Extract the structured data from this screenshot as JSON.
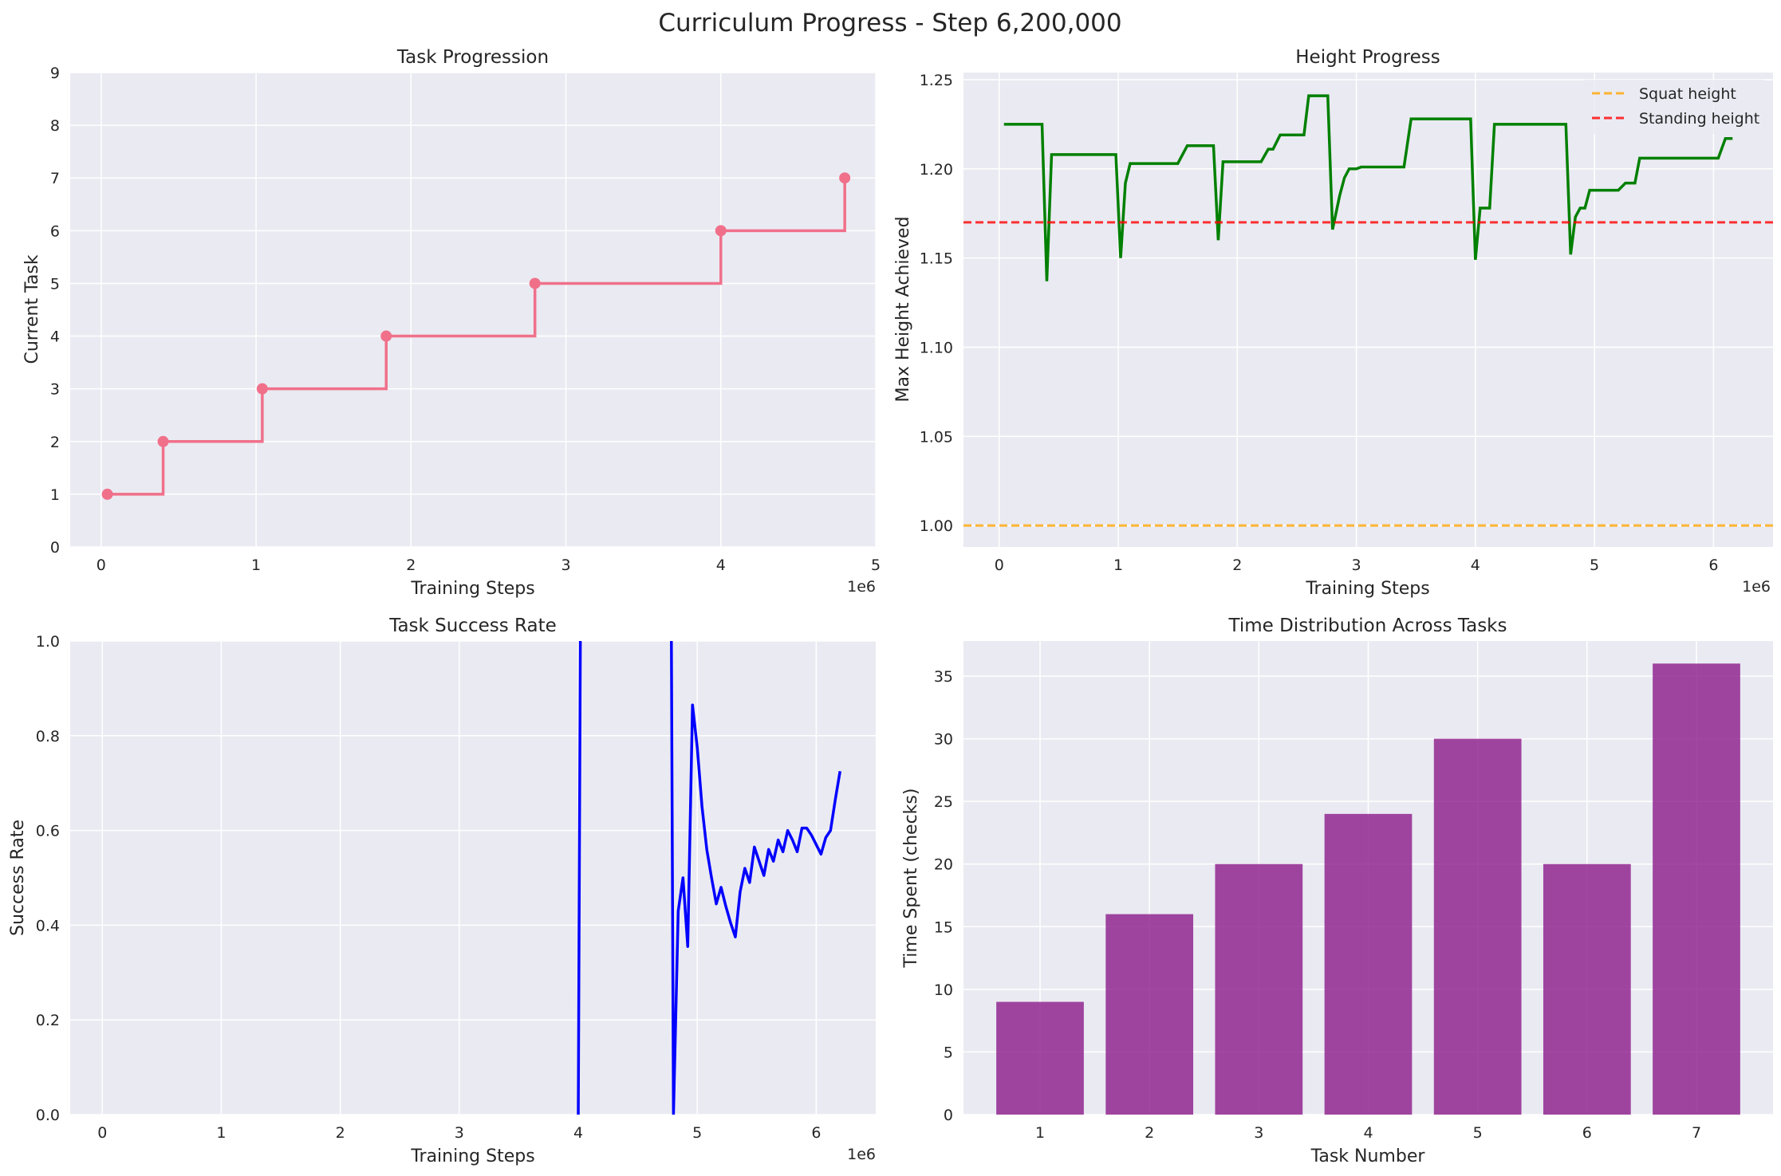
{
  "suptitle": "Curriculum Progress - Step 6,200,000",
  "chart_data": [
    {
      "id": "task",
      "type": "line",
      "title": "Task Progression",
      "xlabel": "Training Steps",
      "ylabel": "Current Task",
      "x_offset_label": "1e6",
      "xlim": [
        -0.2,
        5.0
      ],
      "ylim": [
        0,
        9
      ],
      "xticks": [
        0,
        1,
        2,
        3,
        4,
        5
      ],
      "yticks": [
        0,
        1,
        2,
        3,
        4,
        5,
        6,
        7,
        8,
        9
      ],
      "grid": true,
      "color": "#f0708a",
      "step": true,
      "series": [
        {
          "x": [
            0.04,
            0.4,
            1.04,
            1.84,
            2.8,
            4.0,
            4.8
          ],
          "y": [
            1,
            2,
            3,
            4,
            5,
            6,
            7
          ]
        }
      ]
    },
    {
      "id": "height",
      "type": "line",
      "title": "Height Progress",
      "xlabel": "Training Steps",
      "ylabel": "Max Height Achieved",
      "x_offset_label": "1e6",
      "xlim": [
        -0.3,
        6.5
      ],
      "ylim": [
        0.988,
        1.254
      ],
      "xticks": [
        0,
        1,
        2,
        3,
        4,
        5,
        6
      ],
      "yticks": [
        1.0,
        1.05,
        1.1,
        1.15,
        1.2,
        1.25
      ],
      "ytick_decimals": 2,
      "grid": true,
      "legend_position": "top-right",
      "color": "#008000",
      "series": [
        {
          "x": [
            0.04,
            0.2,
            0.36,
            0.4,
            0.44,
            0.6,
            0.8,
            0.98,
            1.02,
            1.06,
            1.1,
            1.3,
            1.5,
            1.58,
            1.62,
            1.8,
            1.84,
            1.88,
            2.0,
            2.2,
            2.26,
            2.3,
            2.36,
            2.4,
            2.56,
            2.6,
            2.76,
            2.8,
            2.86,
            2.9,
            2.94,
            3.0,
            3.04,
            3.1,
            3.2,
            3.3,
            3.4,
            3.46,
            3.6,
            3.8,
            3.96,
            4.0,
            4.04,
            4.12,
            4.16,
            4.4,
            4.6,
            4.76,
            4.8,
            4.84,
            4.88,
            4.92,
            4.96,
            5.2,
            5.26,
            5.34,
            5.38,
            5.5,
            5.7,
            5.96,
            6.0,
            6.04,
            6.1,
            6.16
          ],
          "y": [
            1.225,
            1.225,
            1.225,
            1.137,
            1.208,
            1.208,
            1.208,
            1.208,
            1.15,
            1.192,
            1.203,
            1.203,
            1.203,
            1.213,
            1.213,
            1.213,
            1.16,
            1.204,
            1.204,
            1.204,
            1.211,
            1.211,
            1.219,
            1.219,
            1.219,
            1.241,
            1.241,
            1.166,
            1.185,
            1.195,
            1.2,
            1.2,
            1.201,
            1.201,
            1.201,
            1.201,
            1.201,
            1.228,
            1.228,
            1.228,
            1.228,
            1.149,
            1.178,
            1.178,
            1.225,
            1.225,
            1.225,
            1.225,
            1.152,
            1.173,
            1.178,
            1.178,
            1.188,
            1.188,
            1.192,
            1.192,
            1.206,
            1.206,
            1.206,
            1.206,
            1.206,
            1.206,
            1.217,
            1.217
          ]
        },
        {
          "name": "Squat height",
          "x": [
            -0.3,
            6.5
          ],
          "y": [
            1.0,
            1.0
          ],
          "color": "#ffa500",
          "dashed": true
        },
        {
          "name": "Standing height",
          "x": [
            -0.3,
            6.5
          ],
          "y": [
            1.17,
            1.17
          ],
          "color": "#ff0000",
          "dashed": true
        }
      ]
    },
    {
      "id": "success",
      "type": "line",
      "title": "Task Success Rate",
      "xlabel": "Training Steps",
      "ylabel": "Success Rate",
      "x_offset_label": "1e6",
      "xlim": [
        -0.27,
        6.5
      ],
      "ylim": [
        0,
        1.0
      ],
      "xticks": [
        0,
        1,
        2,
        3,
        4,
        5,
        6
      ],
      "yticks": [
        0.0,
        0.2,
        0.4,
        0.6,
        0.8,
        1.0
      ],
      "ytick_decimals": 1,
      "grid": true,
      "color": "#0000ff",
      "series": [
        {
          "x": [
            4.0,
            4.02,
            4.78,
            4.8,
            4.84,
            4.88,
            4.92,
            4.96,
            5.0,
            5.04,
            5.08,
            5.12,
            5.16,
            5.2,
            5.24,
            5.28,
            5.32,
            5.36,
            5.4,
            5.44,
            5.48,
            5.52,
            5.56,
            5.6,
            5.64,
            5.68,
            5.72,
            5.76,
            5.8,
            5.84,
            5.88,
            5.92,
            5.96,
            6.0,
            6.04,
            6.08,
            6.12,
            6.16,
            6.2
          ],
          "y": [
            0.0,
            1.15,
            1.15,
            0.0,
            0.43,
            0.5,
            0.355,
            0.865,
            0.775,
            0.65,
            0.56,
            0.5,
            0.445,
            0.48,
            0.44,
            0.405,
            0.375,
            0.47,
            0.52,
            0.49,
            0.565,
            0.535,
            0.505,
            0.56,
            0.535,
            0.58,
            0.555,
            0.6,
            0.58,
            0.555,
            0.605,
            0.605,
            0.59,
            0.57,
            0.55,
            0.585,
            0.6,
            0.665,
            0.725
          ]
        }
      ]
    },
    {
      "id": "time",
      "type": "bar",
      "title": "Time Distribution Across Tasks",
      "xlabel": "Task Number",
      "ylabel": "Time Spent (checks)",
      "xlim": [
        0.3,
        7.7
      ],
      "ylim": [
        0,
        37.8
      ],
      "yticks": [
        0,
        5,
        10,
        15,
        20,
        25,
        30,
        35
      ],
      "grid": true,
      "color": "#8b1a89",
      "categories": [
        "1",
        "2",
        "3",
        "4",
        "5",
        "6",
        "7"
      ],
      "values": [
        9,
        16,
        20,
        24,
        30,
        20,
        36
      ]
    }
  ]
}
